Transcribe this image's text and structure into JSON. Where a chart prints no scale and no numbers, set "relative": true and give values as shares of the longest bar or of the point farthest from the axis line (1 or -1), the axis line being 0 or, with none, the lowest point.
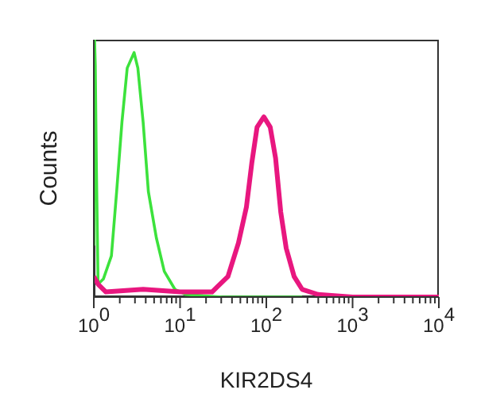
{
  "chart_data": {
    "type": "line",
    "xlabel": "KIR2DS4",
    "ylabel": "Counts",
    "relative": true,
    "log": "x",
    "marker": "none",
    "xlim": [
      1,
      10000
    ],
    "xticks": [
      {
        "value": 1,
        "label": "10$^{0}$"
      },
      {
        "value": 2,
        "label": null
      },
      {
        "value": 3,
        "label": null
      },
      {
        "value": 4,
        "label": null
      },
      {
        "value": 5,
        "label": null
      },
      {
        "value": 6,
        "label": null
      },
      {
        "value": 7,
        "label": null
      },
      {
        "value": 8,
        "label": null
      },
      {
        "value": 9,
        "label": null
      },
      {
        "value": 10,
        "label": "10$^{1}$"
      },
      {
        "value": 20,
        "label": null
      },
      {
        "value": 30,
        "label": null
      },
      {
        "value": 40,
        "label": null
      },
      {
        "value": 50,
        "label": null
      },
      {
        "value": 60,
        "label": null
      },
      {
        "value": 70,
        "label": null
      },
      {
        "value": 80,
        "label": null
      },
      {
        "value": 90,
        "label": null
      },
      {
        "value": 100,
        "label": "10$^{2}$"
      },
      {
        "value": 200,
        "label": null
      },
      {
        "value": 300,
        "label": null
      },
      {
        "value": 400,
        "label": null
      },
      {
        "value": 500,
        "label": null
      },
      {
        "value": 600,
        "label": null
      },
      {
        "value": 700,
        "label": null
      },
      {
        "value": 800,
        "label": null
      },
      {
        "value": 900,
        "label": null
      },
      {
        "value": 1000,
        "label": "10$^{3}$"
      },
      {
        "value": 2000,
        "label": null
      },
      {
        "value": 3000,
        "label": null
      },
      {
        "value": 4000,
        "label": null
      },
      {
        "value": 5000,
        "label": null
      },
      {
        "value": 6000,
        "label": null
      },
      {
        "value": 7000,
        "label": null
      },
      {
        "value": 8000,
        "label": null
      },
      {
        "value": 9000,
        "label": null
      },
      {
        "value": 10000,
        "label": "10$^{4}$"
      }
    ],
    "series": [
      {
        "color": "#3ce23c",
        "x": [
          1,
          1.02,
          1.04,
          1.07,
          1.12,
          1.29,
          1.6,
          1.84,
          2.12,
          2.44,
          2.93,
          3.24,
          3.73,
          4.29,
          5.31,
          6.56,
          8.71,
          11.6,
          31,
          260
        ],
        "values": [
          0.2,
          1.0,
          0.9,
          0.52,
          0.05,
          0.07,
          0.16,
          0.41,
          0.68,
          0.89,
          0.95,
          0.89,
          0.68,
          0.41,
          0.23,
          0.1,
          0.03,
          0.01,
          0.0,
          0.0
        ]
      },
      {
        "color": "#e8177f",
        "x": [
          1,
          1.12,
          1.38,
          3.73,
          10,
          23.5,
          27,
          35.9,
          47.5,
          58.8,
          67.8,
          78.1,
          93.6,
          111,
          128,
          147,
          170,
          210,
          260,
          398,
          1000,
          10000
        ],
        "values": [
          0.08,
          0.05,
          0.02,
          0.03,
          0.02,
          0.02,
          0.04,
          0.08,
          0.21,
          0.35,
          0.52,
          0.66,
          0.7,
          0.66,
          0.54,
          0.33,
          0.19,
          0.08,
          0.03,
          0.01,
          0.0,
          0.0
        ]
      }
    ]
  }
}
